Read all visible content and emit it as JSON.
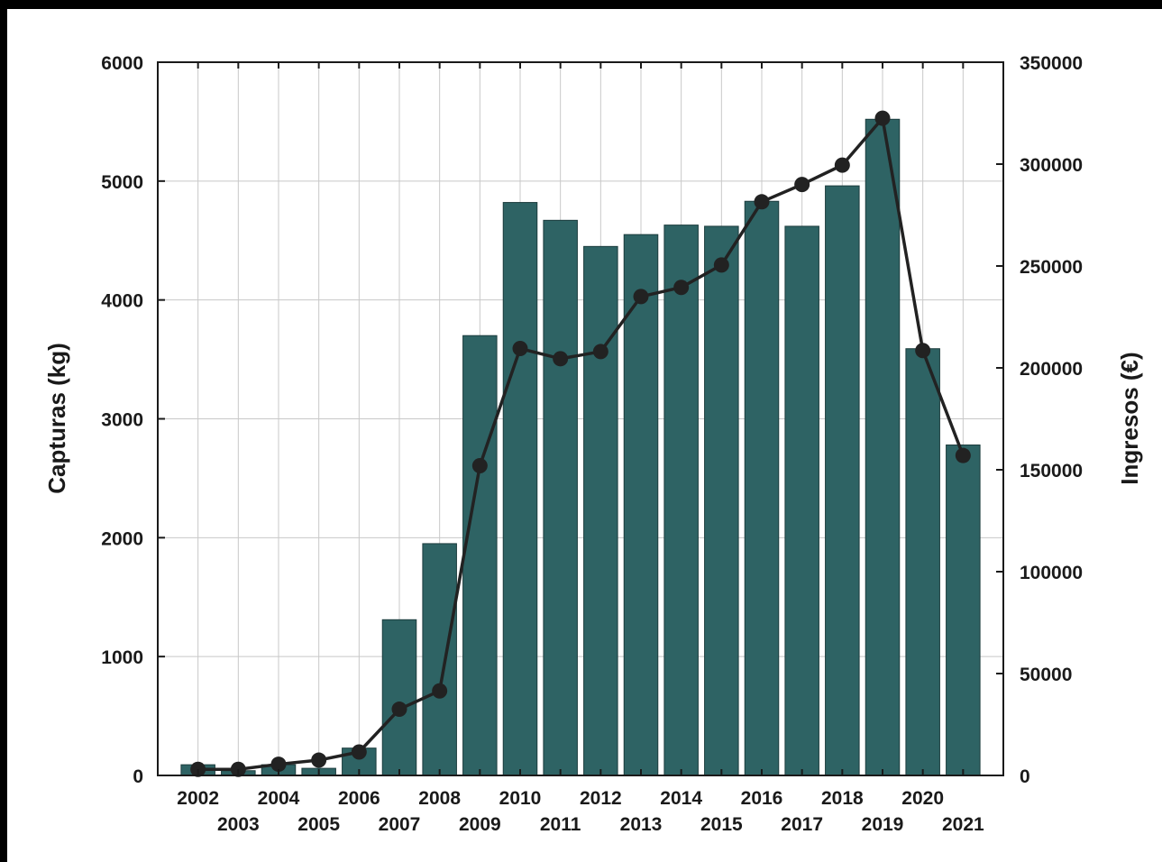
{
  "chart_data": {
    "type": "bar",
    "categories": [
      "2002",
      "2003",
      "2004",
      "2005",
      "2006",
      "2007",
      "2008",
      "2009",
      "2010",
      "2011",
      "2012",
      "2013",
      "2014",
      "2015",
      "2016",
      "2017",
      "2018",
      "2019",
      "2020",
      "2021"
    ],
    "series": [
      {
        "type": "bar",
        "axis": "left",
        "values": [
          90,
          40,
          90,
          60,
          230,
          1310,
          1950,
          3700,
          4820,
          4670,
          4450,
          4550,
          4630,
          4620,
          4830,
          4620,
          4960,
          5520,
          3590,
          2780
        ]
      },
      {
        "type": "line",
        "axis": "right",
        "values": [
          3000,
          3000,
          5500,
          7500,
          11500,
          32500,
          41500,
          152000,
          209500,
          204500,
          208000,
          235000,
          239500,
          250500,
          281500,
          290000,
          299500,
          322500,
          208500,
          157000
        ]
      }
    ],
    "ylabel": "Capturas (kg)",
    "y2label": "Ingresos (€)",
    "ylim": [
      0,
      6000
    ],
    "y2lim": [
      0,
      350000
    ],
    "yticks": [
      "0",
      "1000",
      "2000",
      "3000",
      "4000",
      "5000",
      "6000"
    ],
    "y2ticks": [
      "0",
      "50000",
      "100000",
      "150000",
      "200000",
      "250000",
      "300000",
      "350000"
    ],
    "grid": true,
    "colors": {
      "bar": "#2e6364",
      "bar_edge": "#1c3c3d",
      "line": "#222222",
      "marker": "#222222",
      "grid": "#c8c8c8"
    }
  }
}
